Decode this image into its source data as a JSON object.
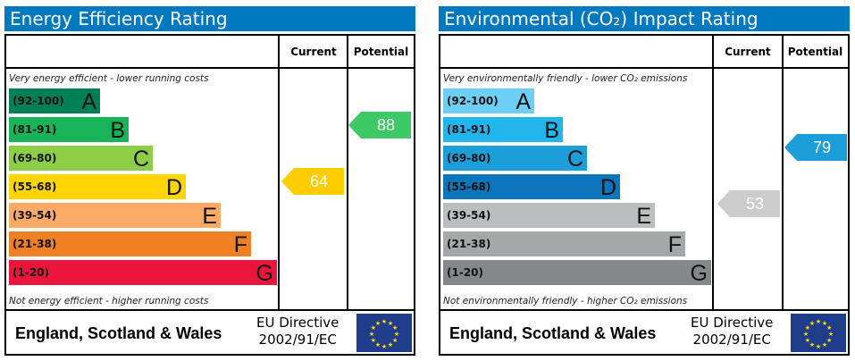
{
  "chart_data": [
    {
      "type": "bar",
      "title": "Energy Efficiency Rating",
      "columns": [
        "Current",
        "Potential"
      ],
      "top_note": "Very energy efficient - lower running costs",
      "bottom_note": "Not energy efficient - higher running costs",
      "bands": [
        {
          "range": "(92-100)",
          "letter": "A",
          "color": "#008054"
        },
        {
          "range": "(81-91)",
          "letter": "B",
          "color": "#19b459"
        },
        {
          "range": "(69-80)",
          "letter": "C",
          "color": "#8dce46"
        },
        {
          "range": "(55-68)",
          "letter": "D",
          "color": "#ffd500"
        },
        {
          "range": "(39-54)",
          "letter": "E",
          "color": "#fcaa65"
        },
        {
          "range": "(21-38)",
          "letter": "F",
          "color": "#ef8023"
        },
        {
          "range": "(1-20)",
          "letter": "G",
          "color": "#e9153b"
        }
      ],
      "current": {
        "value": "64",
        "color": "#ffcc00"
      },
      "potential": {
        "value": "88",
        "color": "#3cc966"
      },
      "footer": {
        "region": "England, Scotland & Wales",
        "directive_line1": "EU Directive",
        "directive_line2": "2002/91/EC"
      }
    },
    {
      "type": "bar",
      "title": "Environmental (CO₂) Impact Rating",
      "columns": [
        "Current",
        "Potential"
      ],
      "top_note": "Very environmentally friendly - lower CO₂ emissions",
      "bottom_note": "Not environmentally friendly - higher CO₂ emissions",
      "bands": [
        {
          "range": "(92-100)",
          "letter": "A",
          "color": "#6dcff6"
        },
        {
          "range": "(81-91)",
          "letter": "B",
          "color": "#22b5eb"
        },
        {
          "range": "(69-80)",
          "letter": "C",
          "color": "#1c9fd8"
        },
        {
          "range": "(55-68)",
          "letter": "D",
          "color": "#0c76bd"
        },
        {
          "range": "(39-54)",
          "letter": "E",
          "color": "#bbbdbf"
        },
        {
          "range": "(21-38)",
          "letter": "F",
          "color": "#a5a7a9"
        },
        {
          "range": "(1-20)",
          "letter": "G",
          "color": "#858789"
        }
      ],
      "current": {
        "value": "53",
        "color": "#cccccc"
      },
      "potential": {
        "value": "79",
        "color": "#1c9fd8"
      },
      "footer": {
        "region": "England, Scotland & Wales",
        "directive_line1": "EU Directive",
        "directive_line2": "2002/91/EC"
      }
    }
  ]
}
